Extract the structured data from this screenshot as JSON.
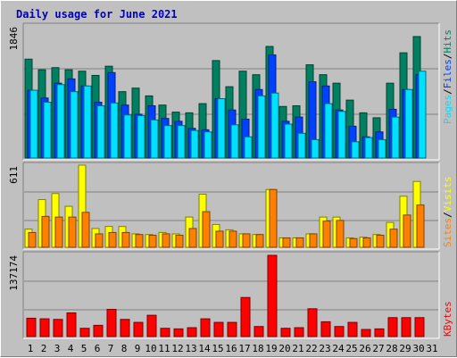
{
  "title": "Daily usage for June 2021",
  "colors": {
    "hits": "#008060",
    "files": "#0040ff",
    "pages": "#00e0ff",
    "visits": "#ffff00",
    "sites": "#ff8000",
    "kbytes": "#ff0000",
    "weekend_label": "#008060",
    "weekday_label": "#000000"
  },
  "chart_data": [
    {
      "type": "bar",
      "categories": [
        "1",
        "2",
        "3",
        "4",
        "5",
        "6",
        "7",
        "8",
        "9",
        "10",
        "11",
        "12",
        "13",
        "14",
        "15",
        "16",
        "17",
        "18",
        "19",
        "20",
        "21",
        "22",
        "23",
        "24",
        "25",
        "26",
        "27",
        "28",
        "29",
        "30",
        "31"
      ],
      "weekend_days": [
        "5",
        "6",
        "12",
        "13",
        "19",
        "20",
        "26",
        "27"
      ],
      "y_max_label": "1846",
      "ylim": [
        0,
        1846
      ],
      "legend": [
        "Pages",
        "Files",
        "Hits"
      ],
      "series": [
        {
          "name": "Hits",
          "values": [
            1400,
            1250,
            1280,
            1250,
            1230,
            1170,
            1300,
            940,
            990,
            880,
            750,
            650,
            640,
            770,
            1380,
            1010,
            1230,
            1180,
            1580,
            730,
            740,
            1320,
            1180,
            1060,
            820,
            640,
            570,
            1060,
            1490,
            1720,
            0
          ]
        },
        {
          "name": "Files",
          "values": [
            960,
            850,
            1060,
            1120,
            1020,
            790,
            1210,
            750,
            620,
            740,
            560,
            520,
            420,
            400,
            840,
            680,
            550,
            970,
            1460,
            520,
            580,
            1080,
            1020,
            680,
            450,
            300,
            370,
            690,
            970,
            1180,
            0
          ]
        },
        {
          "name": "Pages",
          "values": [
            960,
            790,
            1040,
            940,
            1020,
            740,
            780,
            610,
            600,
            540,
            460,
            460,
            390,
            370,
            840,
            470,
            300,
            880,
            920,
            480,
            350,
            260,
            770,
            660,
            230,
            290,
            260,
            580,
            970,
            1230,
            0
          ]
        }
      ]
    },
    {
      "type": "bar",
      "categories": [
        "1",
        "2",
        "3",
        "4",
        "5",
        "6",
        "7",
        "8",
        "9",
        "10",
        "11",
        "12",
        "13",
        "14",
        "15",
        "16",
        "17",
        "18",
        "19",
        "20",
        "21",
        "22",
        "23",
        "24",
        "25",
        "26",
        "27",
        "28",
        "29",
        "30",
        "31"
      ],
      "y_max_label": "611",
      "ylim": [
        0,
        611
      ],
      "legend": [
        "Sites",
        "Visits"
      ],
      "series": [
        {
          "name": "Visits",
          "values": [
            135,
            355,
            400,
            305,
            611,
            140,
            155,
            155,
            100,
            95,
            110,
            100,
            225,
            395,
            170,
            130,
            100,
            95,
            430,
            70,
            70,
            100,
            225,
            225,
            70,
            75,
            95,
            185,
            380,
            490,
            0
          ]
        },
        {
          "name": "Sites",
          "values": [
            110,
            230,
            225,
            225,
            260,
            100,
            110,
            110,
            95,
            90,
            100,
            90,
            140,
            265,
            120,
            120,
            100,
            95,
            430,
            70,
            70,
            100,
            195,
            200,
            65,
            70,
            90,
            135,
            240,
            315,
            0
          ]
        }
      ]
    },
    {
      "type": "bar",
      "categories": [
        "1",
        "2",
        "3",
        "4",
        "5",
        "6",
        "7",
        "8",
        "9",
        "10",
        "11",
        "12",
        "13",
        "14",
        "15",
        "16",
        "17",
        "18",
        "19",
        "20",
        "21",
        "22",
        "23",
        "24",
        "25",
        "26",
        "27",
        "28",
        "29",
        "30",
        "31"
      ],
      "y_max_label": "137174",
      "ylim": [
        0,
        137174
      ],
      "legend": [
        "KBytes"
      ],
      "series": [
        {
          "name": "KBytes",
          "values": [
            31000,
            30000,
            29000,
            40000,
            14000,
            19000,
            46000,
            29000,
            24000,
            36000,
            14000,
            13000,
            15000,
            30000,
            24000,
            24000,
            66000,
            17000,
            137174,
            14000,
            15000,
            47000,
            25000,
            17000,
            24000,
            12000,
            13000,
            32000,
            32000,
            32000,
            0
          ]
        }
      ]
    }
  ]
}
